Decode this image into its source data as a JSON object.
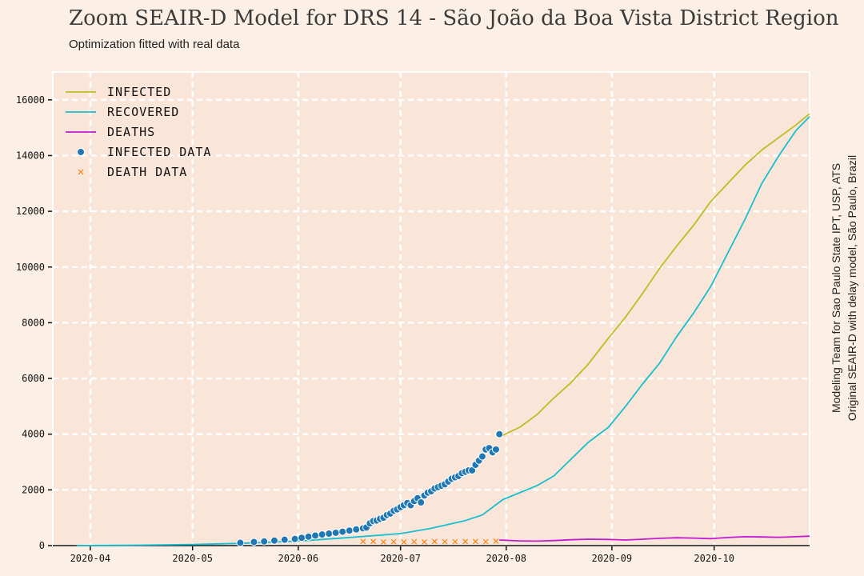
{
  "header": {
    "title": "Zoom SEAIR-D Model for DRS 14 - São João da Boa Vista District Region",
    "subtitle": "Optimization fitted with real data"
  },
  "credits": {
    "line1": "Modeling Team for Sao Paulo State IPT, USP, ATS",
    "line2": "Original SEAIR-D with delay model, São Paulo, Brazil"
  },
  "colors": {
    "background": "#fcf0e6",
    "plot_background": "#f9e6d9",
    "grid": "#ffffff",
    "infected": "#bcbd22",
    "recovered": "#17becf",
    "deaths": "#c41bd1",
    "infected_data": "#1f77b4",
    "death_data": "#ff7f0e"
  },
  "legend": {
    "position": "upper-left",
    "items": [
      {
        "label": "INFECTED",
        "kind": "line",
        "color": "#bcbd22"
      },
      {
        "label": "RECOVERED",
        "kind": "line",
        "color": "#17becf"
      },
      {
        "label": "DEATHS",
        "kind": "line",
        "color": "#c41bd1"
      },
      {
        "label": "INFECTED DATA",
        "kind": "dot",
        "color": "#1f77b4"
      },
      {
        "label": "DEATH DATA",
        "kind": "cross",
        "color": "#ff7f0e"
      }
    ]
  },
  "chart_data": {
    "type": "line",
    "title": "Zoom SEAIR-D Model for DRS 14 - São João da Boa Vista District Region",
    "subtitle": "Optimization fitted with real data",
    "xlabel": "",
    "ylabel": "",
    "x_type": "date",
    "xlim": [
      "2020-03-21",
      "2020-10-29"
    ],
    "ylim": [
      0,
      17000
    ],
    "grid": true,
    "legend_position": "upper-left",
    "x_ticks": [
      "2020-04-01",
      "2020-05-01",
      "2020-06-01",
      "2020-07-01",
      "2020-08-01",
      "2020-09-01",
      "2020-10-01"
    ],
    "x_tick_labels": [
      "2020-04",
      "2020-05",
      "2020-06",
      "2020-07",
      "2020-08",
      "2020-09",
      "2020-10"
    ],
    "y_ticks": [
      0,
      2000,
      4000,
      6000,
      8000,
      10000,
      12000,
      14000,
      16000
    ],
    "y_tick_labels": [
      "0",
      "2000",
      "4000",
      "6000",
      "8000",
      "10000",
      "12000",
      "14000",
      "16000"
    ],
    "series": [
      {
        "name": "INFECTED",
        "style": "line",
        "color": "#bcbd22",
        "points": [
          [
            "2020-07-30",
            3900
          ],
          [
            "2020-08-05",
            4250
          ],
          [
            "2020-08-10",
            4700
          ],
          [
            "2020-08-15",
            5300
          ],
          [
            "2020-08-20",
            5850
          ],
          [
            "2020-08-25",
            6500
          ],
          [
            "2020-08-31",
            7450
          ],
          [
            "2020-09-05",
            8200
          ],
          [
            "2020-09-10",
            9050
          ],
          [
            "2020-09-15",
            9950
          ],
          [
            "2020-09-20",
            10750
          ],
          [
            "2020-09-25",
            11500
          ],
          [
            "2020-09-30",
            12350
          ],
          [
            "2020-10-05",
            13000
          ],
          [
            "2020-10-10",
            13650
          ],
          [
            "2020-10-15",
            14200
          ],
          [
            "2020-10-20",
            14650
          ],
          [
            "2020-10-25",
            15100
          ],
          [
            "2020-10-29",
            15500
          ]
        ]
      },
      {
        "name": "RECOVERED",
        "style": "line",
        "color": "#17becf",
        "points": [
          [
            "2020-03-28",
            0
          ],
          [
            "2020-04-15",
            15
          ],
          [
            "2020-05-01",
            40
          ],
          [
            "2020-05-15",
            80
          ],
          [
            "2020-06-01",
            160
          ],
          [
            "2020-06-15",
            280
          ],
          [
            "2020-07-01",
            430
          ],
          [
            "2020-07-10",
            620
          ],
          [
            "2020-07-20",
            900
          ],
          [
            "2020-07-25",
            1100
          ],
          [
            "2020-07-31",
            1650
          ],
          [
            "2020-08-10",
            2150
          ],
          [
            "2020-08-15",
            2500
          ],
          [
            "2020-08-20",
            3100
          ],
          [
            "2020-08-25",
            3700
          ],
          [
            "2020-08-31",
            4250
          ],
          [
            "2020-09-05",
            5000
          ],
          [
            "2020-09-10",
            5800
          ],
          [
            "2020-09-15",
            6550
          ],
          [
            "2020-09-20",
            7500
          ],
          [
            "2020-09-25",
            8350
          ],
          [
            "2020-09-30",
            9300
          ],
          [
            "2020-10-05",
            10500
          ],
          [
            "2020-10-10",
            11700
          ],
          [
            "2020-10-15",
            13000
          ],
          [
            "2020-10-20",
            14000
          ],
          [
            "2020-10-25",
            14900
          ],
          [
            "2020-10-29",
            15400
          ]
        ]
      },
      {
        "name": "DEATHS",
        "style": "line",
        "color": "#c41bd1",
        "points": [
          [
            "2020-07-30",
            200
          ],
          [
            "2020-08-05",
            170
          ],
          [
            "2020-08-10",
            160
          ],
          [
            "2020-08-15",
            180
          ],
          [
            "2020-08-20",
            210
          ],
          [
            "2020-08-25",
            230
          ],
          [
            "2020-08-31",
            220
          ],
          [
            "2020-09-05",
            200
          ],
          [
            "2020-09-10",
            230
          ],
          [
            "2020-09-15",
            260
          ],
          [
            "2020-09-20",
            280
          ],
          [
            "2020-09-25",
            270
          ],
          [
            "2020-09-30",
            250
          ],
          [
            "2020-10-05",
            290
          ],
          [
            "2020-10-10",
            320
          ],
          [
            "2020-10-15",
            310
          ],
          [
            "2020-10-20",
            300
          ],
          [
            "2020-10-25",
            320
          ],
          [
            "2020-10-29",
            340
          ]
        ]
      },
      {
        "name": "INFECTED DATA",
        "style": "scatter",
        "color": "#1f77b4",
        "points": [
          [
            "2020-05-15",
            100
          ],
          [
            "2020-05-19",
            130
          ],
          [
            "2020-05-22",
            150
          ],
          [
            "2020-05-25",
            180
          ],
          [
            "2020-05-28",
            210
          ],
          [
            "2020-05-31",
            240
          ],
          [
            "2020-06-02",
            280
          ],
          [
            "2020-06-04",
            320
          ],
          [
            "2020-06-06",
            360
          ],
          [
            "2020-06-08",
            400
          ],
          [
            "2020-06-10",
            430
          ],
          [
            "2020-06-12",
            460
          ],
          [
            "2020-06-14",
            500
          ],
          [
            "2020-06-16",
            540
          ],
          [
            "2020-06-18",
            580
          ],
          [
            "2020-06-20",
            620
          ],
          [
            "2020-06-21",
            650
          ],
          [
            "2020-06-22",
            800
          ],
          [
            "2020-06-23",
            880
          ],
          [
            "2020-06-24",
            900
          ],
          [
            "2020-06-25",
            960
          ],
          [
            "2020-06-26",
            1000
          ],
          [
            "2020-06-27",
            1100
          ],
          [
            "2020-06-28",
            1150
          ],
          [
            "2020-06-29",
            1250
          ],
          [
            "2020-06-30",
            1300
          ],
          [
            "2020-07-01",
            1380
          ],
          [
            "2020-07-02",
            1450
          ],
          [
            "2020-07-03",
            1530
          ],
          [
            "2020-07-04",
            1450
          ],
          [
            "2020-07-05",
            1600
          ],
          [
            "2020-07-06",
            1700
          ],
          [
            "2020-07-07",
            1550
          ],
          [
            "2020-07-08",
            1800
          ],
          [
            "2020-07-09",
            1900
          ],
          [
            "2020-07-10",
            1950
          ],
          [
            "2020-07-11",
            2050
          ],
          [
            "2020-07-12",
            2100
          ],
          [
            "2020-07-13",
            2150
          ],
          [
            "2020-07-14",
            2200
          ],
          [
            "2020-07-15",
            2300
          ],
          [
            "2020-07-16",
            2400
          ],
          [
            "2020-07-17",
            2450
          ],
          [
            "2020-07-18",
            2500
          ],
          [
            "2020-07-19",
            2600
          ],
          [
            "2020-07-20",
            2650
          ],
          [
            "2020-07-21",
            2700
          ],
          [
            "2020-07-22",
            2700
          ],
          [
            "2020-07-23",
            2900
          ],
          [
            "2020-07-24",
            3050
          ],
          [
            "2020-07-25",
            3200
          ],
          [
            "2020-07-26",
            3450
          ],
          [
            "2020-07-27",
            3500
          ],
          [
            "2020-07-28",
            3350
          ],
          [
            "2020-07-29",
            3450
          ],
          [
            "2020-07-30",
            4000
          ]
        ]
      },
      {
        "name": "DEATH DATA",
        "style": "cross",
        "color": "#ff7f0e",
        "points": [
          [
            "2020-06-20",
            150
          ],
          [
            "2020-06-23",
            150
          ],
          [
            "2020-06-26",
            130
          ],
          [
            "2020-06-29",
            140
          ],
          [
            "2020-07-02",
            130
          ],
          [
            "2020-07-05",
            140
          ],
          [
            "2020-07-08",
            130
          ],
          [
            "2020-07-11",
            150
          ],
          [
            "2020-07-14",
            140
          ],
          [
            "2020-07-17",
            140
          ],
          [
            "2020-07-20",
            150
          ],
          [
            "2020-07-23",
            150
          ],
          [
            "2020-07-26",
            140
          ],
          [
            "2020-07-29",
            160
          ]
        ]
      }
    ]
  }
}
